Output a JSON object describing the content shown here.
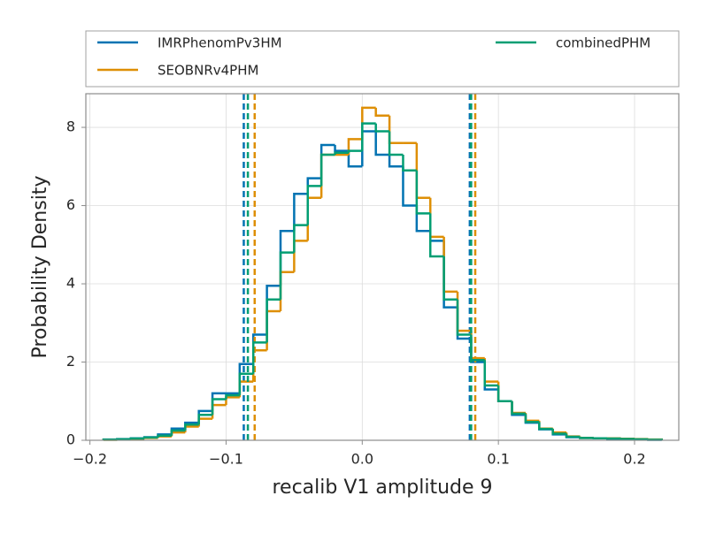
{
  "chart_data": {
    "type": "histogram",
    "xlabel": "recalib V1 amplitude 9",
    "ylabel": "Probability Density",
    "xlim": [
      -0.203,
      0.2325
    ],
    "ylim": [
      0,
      8.86
    ],
    "xticks": [
      {
        "value": -0.2,
        "label": "−0.2"
      },
      {
        "value": -0.1,
        "label": "−0.1"
      },
      {
        "value": 0,
        "label": "0.0"
      },
      {
        "value": 0.1,
        "label": "0.1"
      },
      {
        "value": 0.2,
        "label": "0.2"
      }
    ],
    "yticks": [
      0,
      2,
      4,
      6,
      8
    ],
    "grid": true,
    "legend_position": "top",
    "bins": [
      -0.19,
      -0.18,
      -0.17,
      -0.16,
      -0.15,
      -0.14,
      -0.13,
      -0.12,
      -0.11,
      -0.1,
      -0.09,
      -0.08,
      -0.07,
      -0.06,
      -0.05,
      -0.04,
      -0.03,
      -0.02,
      -0.01,
      0,
      0.01,
      0.02,
      0.03,
      0.04,
      0.05,
      0.06,
      0.07,
      0.08,
      0.09,
      0.1,
      0.11,
      0.12,
      0.13,
      0.14,
      0.15,
      0.16,
      0.17,
      0.18,
      0.19,
      0.2,
      0.21,
      0.22
    ],
    "series": [
      {
        "name": "IMRPhenomPv3HM",
        "color": "#0173b2",
        "quantiles": [
          -0.087,
          0.079
        ],
        "values": [
          0.02,
          0.03,
          0.05,
          0.08,
          0.15,
          0.3,
          0.45,
          0.75,
          1.2,
          1.2,
          1.95,
          2.7,
          3.95,
          5.35,
          6.3,
          6.7,
          7.55,
          7.4,
          7.0,
          7.9,
          7.3,
          7.0,
          6.0,
          5.35,
          5.1,
          3.4,
          2.6,
          2.0,
          1.3,
          1.0,
          0.65,
          0.45,
          0.28,
          0.15,
          0.08,
          0.06,
          0.05,
          0.04,
          0.03,
          0.02,
          0.01
        ]
      },
      {
        "name": "SEOBNRv4PHM",
        "color": "#de8f05",
        "quantiles": [
          -0.079,
          0.083
        ],
        "values": [
          0.01,
          0.02,
          0.04,
          0.06,
          0.1,
          0.2,
          0.35,
          0.55,
          0.9,
          1.1,
          1.5,
          2.3,
          3.3,
          4.3,
          5.1,
          6.2,
          7.3,
          7.3,
          7.7,
          8.5,
          8.3,
          7.6,
          7.6,
          6.2,
          5.2,
          3.8,
          2.8,
          2.1,
          1.5,
          1.0,
          0.7,
          0.5,
          0.3,
          0.2,
          0.1,
          0.06,
          0.05,
          0.05,
          0.04,
          0.03,
          0.02
        ]
      },
      {
        "name": "combinedPHM",
        "color": "#029e73",
        "quantiles": [
          -0.084,
          0.08
        ],
        "values": [
          0.015,
          0.025,
          0.045,
          0.07,
          0.12,
          0.25,
          0.4,
          0.65,
          1.05,
          1.15,
          1.7,
          2.5,
          3.6,
          4.8,
          5.5,
          6.5,
          7.3,
          7.35,
          7.4,
          8.1,
          7.9,
          7.3,
          6.9,
          5.8,
          4.7,
          3.6,
          2.7,
          2.05,
          1.4,
          1.0,
          0.68,
          0.47,
          0.29,
          0.17,
          0.09,
          0.06,
          0.05,
          0.045,
          0.035,
          0.025,
          0.015
        ]
      }
    ]
  }
}
